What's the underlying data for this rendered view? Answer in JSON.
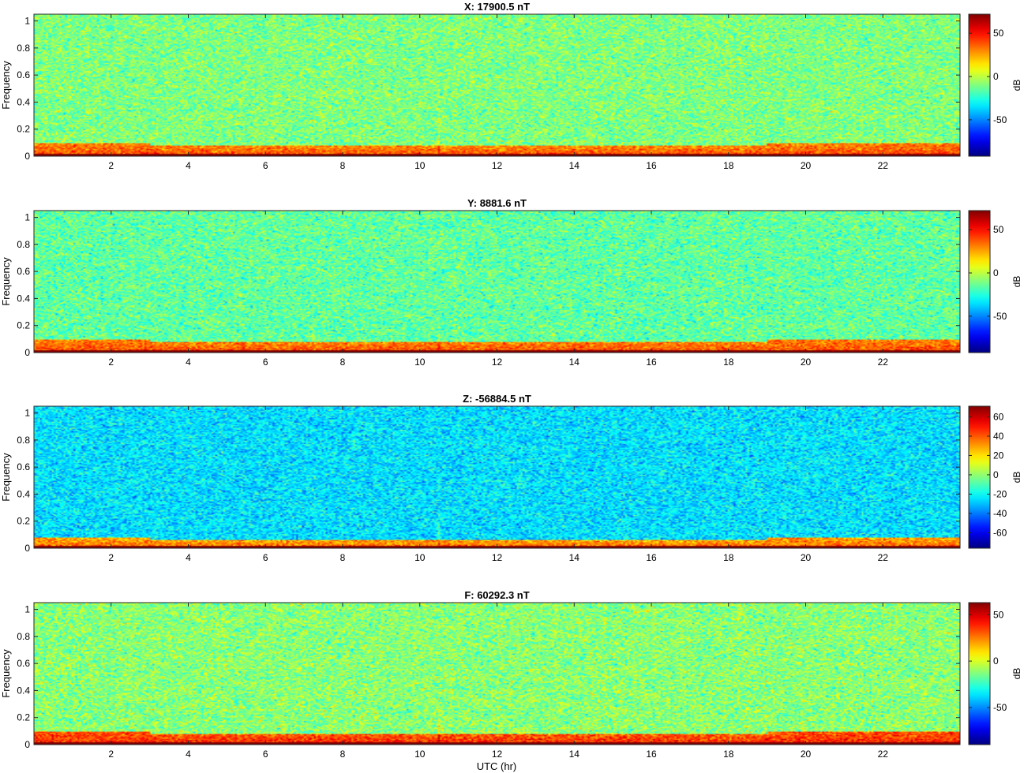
{
  "figure": {
    "xlabel": "UTC (hr)"
  },
  "chart_data": [
    {
      "type": "heatmap",
      "title": "X: 17900.5 nT",
      "ylabel": "Frequency",
      "colorbar_label": "dB",
      "x_range_hr": [
        0,
        24
      ],
      "xticks": [
        2,
        4,
        6,
        8,
        10,
        12,
        14,
        16,
        18,
        20,
        22
      ],
      "ylim": [
        0,
        1.05
      ],
      "yticks": [
        0,
        0.2,
        0.4,
        0.6,
        0.8,
        1
      ],
      "clim": [
        -92,
        72
      ],
      "colorbar_ticks": [
        -50,
        0,
        50
      ],
      "background_db": -10,
      "noise_db": 18,
      "low_freq_band": {
        "freq_max": 0.1,
        "db": 40
      },
      "dc_line_db": 75,
      "colormap": "jet"
    },
    {
      "type": "heatmap",
      "title": "Y: 8881.6 nT",
      "ylabel": "Frequency",
      "colorbar_label": "dB",
      "x_range_hr": [
        0,
        24
      ],
      "xticks": [
        2,
        4,
        6,
        8,
        10,
        12,
        14,
        16,
        18,
        20,
        22
      ],
      "ylim": [
        0,
        1.05
      ],
      "yticks": [
        0,
        0.2,
        0.4,
        0.6,
        0.8,
        1
      ],
      "clim": [
        -92,
        72
      ],
      "colorbar_ticks": [
        -50,
        0,
        50
      ],
      "background_db": -15,
      "noise_db": 18,
      "low_freq_band": {
        "freq_max": 0.1,
        "db": 40
      },
      "dc_line_db": 75,
      "colormap": "jet"
    },
    {
      "type": "heatmap",
      "title": "Z: -56884.5 nT",
      "ylabel": "Frequency",
      "colorbar_label": "dB",
      "x_range_hr": [
        0,
        24
      ],
      "xticks": [
        2,
        4,
        6,
        8,
        10,
        12,
        14,
        16,
        18,
        20,
        22
      ],
      "ylim": [
        0,
        1.05
      ],
      "yticks": [
        0,
        0.2,
        0.4,
        0.6,
        0.8,
        1
      ],
      "clim": [
        -76,
        71
      ],
      "colorbar_ticks": [
        -60,
        -40,
        -20,
        0,
        20,
        40,
        60
      ],
      "background_db": -25,
      "noise_db": 16,
      "low_freq_band": {
        "freq_max": 0.08,
        "db": 38
      },
      "dc_line_db": 75,
      "colormap": "jet"
    },
    {
      "type": "heatmap",
      "title": "F: 60292.3 nT",
      "ylabel": "Frequency",
      "colorbar_label": "dB",
      "x_range_hr": [
        0,
        24
      ],
      "xticks": [
        2,
        4,
        6,
        8,
        10,
        12,
        14,
        16,
        18,
        20,
        22
      ],
      "ylim": [
        0,
        1.05
      ],
      "yticks": [
        0,
        0.2,
        0.4,
        0.6,
        0.8,
        1
      ],
      "clim": [
        -90,
        63
      ],
      "colorbar_ticks": [
        -50,
        0,
        50
      ],
      "background_db": -12,
      "noise_db": 18,
      "low_freq_band": {
        "freq_max": 0.1,
        "db": 40
      },
      "dc_line_db": 70,
      "colormap": "jet"
    }
  ]
}
